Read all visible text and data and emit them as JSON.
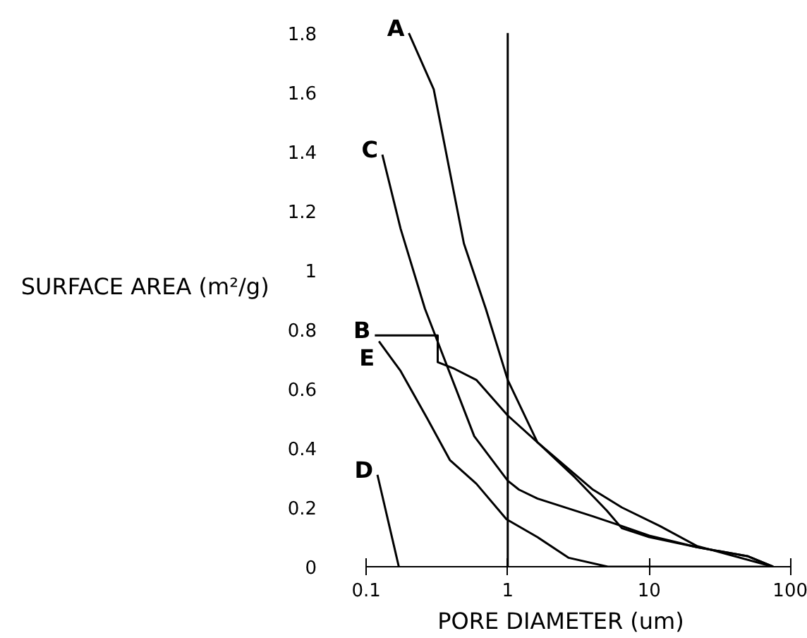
{
  "chart_data": {
    "type": "line",
    "xlabel": "PORE DIAMETER (um)",
    "ylabel": "SURFACE AREA (m²/g)",
    "log": "x",
    "xlim": [
      0.1,
      100
    ],
    "ylim": [
      0,
      1.8
    ],
    "xticks": [
      0.1,
      1,
      10,
      100
    ],
    "yticks": [
      0,
      0.2,
      0.4,
      0.6,
      0.8,
      1,
      1.2,
      1.4,
      1.6,
      1.8
    ],
    "grid": false,
    "marker": "none",
    "line_style": "solid",
    "ref_lines": [
      {
        "axis": "x",
        "value": 1
      }
    ],
    "series": [
      {
        "name": "A",
        "color": "#000000",
        "x": [
          0.2,
          0.3,
          0.49,
          0.7,
          1,
          1.62,
          3,
          5,
          6.4,
          10,
          21.7,
          50,
          75
        ],
        "values": [
          1.8,
          1.61,
          1.09,
          0.87,
          0.63,
          0.42,
          0.3,
          0.19,
          0.13,
          0.1,
          0.066,
          0.035,
          0
        ]
      },
      {
        "name": "B",
        "color": "#000000",
        "x": [
          0.115,
          0.32,
          0.32,
          0.41,
          0.6,
          1,
          1.62,
          4,
          6.4,
          11.9,
          21.7,
          75
        ],
        "values": [
          0.78,
          0.78,
          0.69,
          0.67,
          0.63,
          0.51,
          0.42,
          0.26,
          0.2,
          0.137,
          0.07,
          0
        ]
      },
      {
        "name": "C",
        "color": "#000000",
        "x": [
          0.13,
          0.175,
          0.26,
          0.58,
          1,
          1.2,
          1.62,
          4,
          6.4,
          10,
          21.7,
          50,
          75
        ],
        "values": [
          1.39,
          1.14,
          0.87,
          0.44,
          0.29,
          0.26,
          0.23,
          0.17,
          0.137,
          0.105,
          0.066,
          0.035,
          0
        ]
      },
      {
        "name": "D",
        "color": "#000000",
        "x": [
          0.12,
          0.17
        ],
        "values": [
          0.31,
          0
        ]
      },
      {
        "name": "E",
        "color": "#000000",
        "x": [
          0.123,
          0.175,
          0.27,
          0.39,
          0.6,
          0.98,
          1.62,
          2.7,
          5.1,
          75
        ],
        "values": [
          0.76,
          0.66,
          0.5,
          0.36,
          0.28,
          0.16,
          0.1,
          0.03,
          0,
          0
        ]
      }
    ]
  }
}
